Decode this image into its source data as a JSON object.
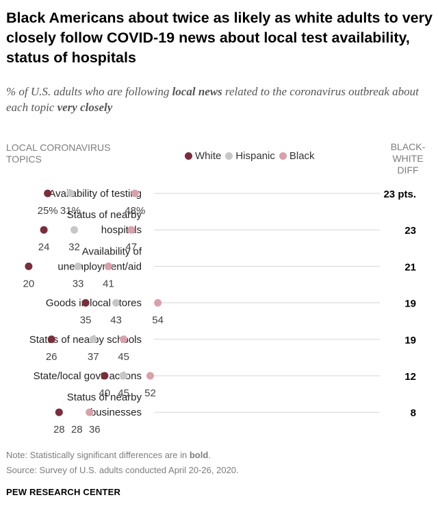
{
  "title": "Black Americans about twice as likely as white adults to very closely follow COVID-19 news about local test availability, status of hospitals",
  "subtitle_parts": {
    "pre": "% of U.S. adults who are following ",
    "bold1": "local news",
    "mid": " related to the coronavirus outbreak about each topic ",
    "bold2": "very closely"
  },
  "column_headers": {
    "topics": "LOCAL CORONAVIRUS TOPICS",
    "diff": "BLACK-WHITE DIFF"
  },
  "colors": {
    "white": "#7a2e3b",
    "hispanic": "#c7c7c7",
    "black": "#d9a1aa",
    "gridline": "#d5d5d5",
    "label": "#444444"
  },
  "chart_data": {
    "type": "dot",
    "title": "Black Americans about twice as likely as white adults to very closely follow COVID-19 news about local test availability, status of hospitals",
    "series": [
      {
        "name": "White",
        "values": [
          25,
          24,
          20,
          35,
          26,
          40,
          28
        ]
      },
      {
        "name": "Hispanic",
        "values": [
          31,
          32,
          33,
          43,
          37,
          45,
          28
        ]
      },
      {
        "name": "Black",
        "values": [
          48,
          47,
          41,
          54,
          45,
          52,
          36
        ]
      }
    ],
    "categories": [
      [
        "Availability of testing"
      ],
      [
        "Status of nearby",
        "hospitals"
      ],
      [
        "Availability of",
        "unemployment/aid"
      ],
      [
        "Goods in local stores"
      ],
      [
        "Status of nearby schools"
      ],
      [
        "State/local govt. actions"
      ],
      [
        "Status of nearby",
        "businesses"
      ]
    ],
    "value_labels": [
      [
        "25%",
        "31%",
        "48%"
      ],
      [
        "24",
        "32",
        "47"
      ],
      [
        "20",
        "33",
        "41"
      ],
      [
        "35",
        "43",
        "54"
      ],
      [
        "26",
        "37",
        "45"
      ],
      [
        "40",
        "45",
        "52"
      ],
      [
        "28",
        "28",
        "36"
      ]
    ],
    "diff_labels": [
      "23 pts.",
      "23",
      "21",
      "19",
      "19",
      "12",
      "8"
    ],
    "xlim": [
      0,
      100
    ]
  },
  "notes": {
    "note_pre": "Note: Statistically significant differences are in ",
    "note_bold": "bold",
    "note_post": ".",
    "source": "Source: Survey of U.S. adults conducted April 20-26, 2020."
  },
  "brand": "PEW RESEARCH CENTER"
}
